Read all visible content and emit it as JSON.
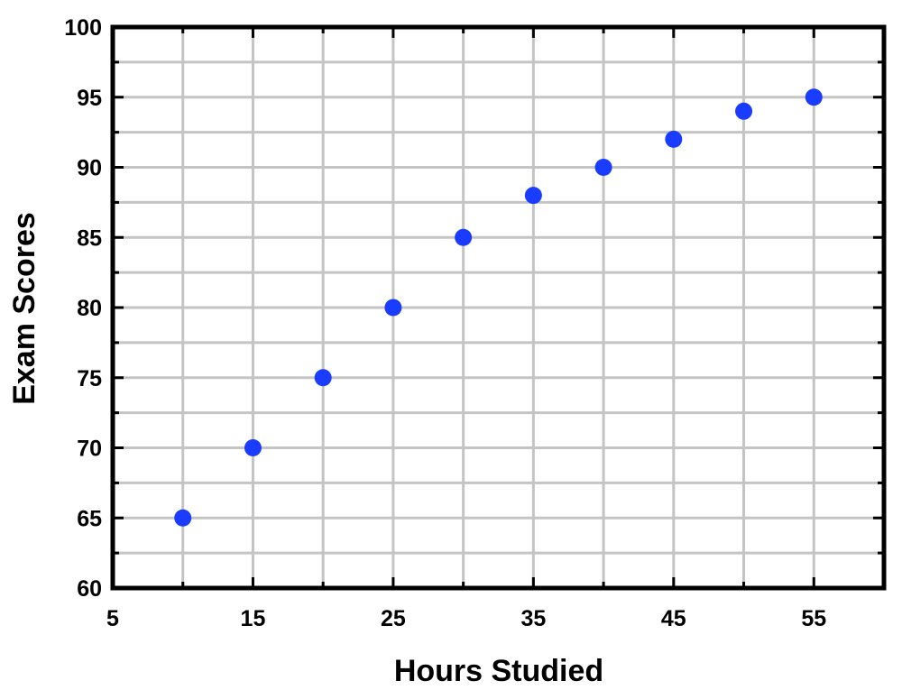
{
  "chart_data": {
    "type": "scatter",
    "title": "",
    "xlabel": "Hours Studied",
    "ylabel": "Exam Scores",
    "xlim": [
      5,
      60
    ],
    "ylim": [
      60,
      100
    ],
    "x_major_ticks": [
      5,
      15,
      25,
      35,
      45,
      55
    ],
    "x_grid": [
      5,
      10,
      15,
      20,
      25,
      30,
      35,
      40,
      45,
      50,
      55,
      60
    ],
    "y_major_ticks": [
      60,
      65,
      70,
      75,
      80,
      85,
      90,
      95,
      100
    ],
    "y_grid": [
      62.5,
      65,
      67.5,
      70,
      72.5,
      75,
      77.5,
      80,
      82.5,
      85,
      87.5,
      90,
      92.5,
      95,
      97.5
    ],
    "grid": true,
    "legend": "none",
    "series": [
      {
        "x": [
          10,
          15,
          20,
          25,
          30,
          35,
          40,
          45,
          50,
          55
        ],
        "y": [
          65,
          70,
          75,
          80,
          85,
          88,
          90,
          92,
          94,
          95
        ],
        "color": "#1a3cff"
      }
    ],
    "grid_color": "#c4c4c4",
    "frame_color": "#000000"
  }
}
